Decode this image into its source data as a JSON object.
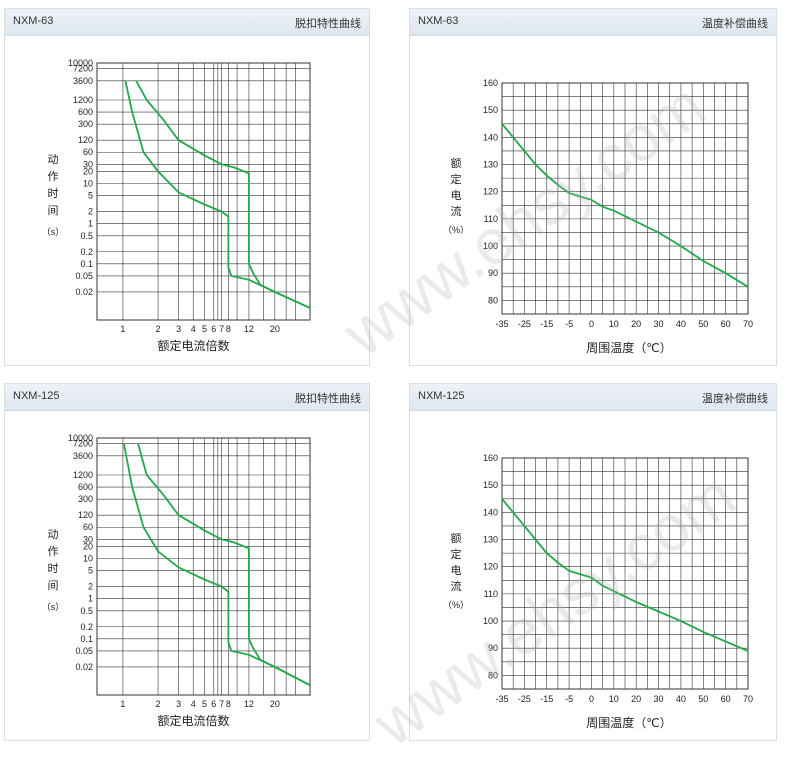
{
  "panels": [
    {
      "model": "NXM-63",
      "header_right": "脱扣特性曲线",
      "chart_data": {
        "type": "line",
        "y_tick_labels": [
          "10000",
          "7200",
          "3600",
          "1200",
          "600",
          "300",
          "120",
          "60",
          "30",
          "20",
          "10",
          "5",
          "2",
          "1",
          "0.5",
          "0.2",
          "0.1",
          "0.05",
          "0.02"
        ],
        "x_tick_labels": [
          "1",
          "2",
          "3",
          "4",
          "5",
          "6",
          "7",
          "8",
          "12",
          "20"
        ],
        "ylabel": [
          "动",
          "作",
          "时",
          "间",
          "（s）"
        ],
        "xlabel": "额定电流倍数",
        "series": [
          {
            "x": [
              1.05,
              1.2,
              1.5,
              2,
              3,
              5,
              7,
              8,
              8,
              8.5,
              12,
              20,
              40
            ],
            "y": [
              3600,
              600,
              60,
              20,
              6,
              3,
              2,
              1.5,
              0.08,
              0.05,
              0.04,
              0.02,
              0.008
            ]
          },
          {
            "x": [
              1.3,
              1.6,
              2.2,
              3,
              5,
              7,
              9,
              12,
              12,
              13,
              15,
              20,
              40
            ],
            "y": [
              3600,
              1200,
              400,
              120,
              50,
              30,
              25,
              18,
              0.1,
              0.06,
              0.03,
              0.02,
              0.008
            ]
          }
        ]
      }
    },
    {
      "model": "NXM-63",
      "header_right": "温度补偿曲线",
      "chart_data": {
        "type": "line",
        "x_ticks": [
          -35,
          -25,
          -15,
          -5,
          0,
          10,
          20,
          30,
          40,
          50,
          60,
          70
        ],
        "y_ticks": [
          80,
          90,
          100,
          110,
          120,
          130,
          140,
          150,
          160
        ],
        "xlabel": "周围温度（℃）",
        "ylabel": [
          "额",
          "定",
          "电",
          "流",
          "（%）"
        ],
        "ylim": [
          75,
          160
        ],
        "series": [
          {
            "x": [
              -35,
              -30,
              -25,
              -20,
              -15,
              -10,
              -5,
              0,
              5,
              10,
              20,
              30,
              40,
              50,
              60,
              70
            ],
            "y": [
              145,
              140,
              135,
              130,
              126,
              122.5,
              119.5,
              117,
              114.5,
              113,
              109,
              105,
              100,
              94.5,
              90,
              85
            ]
          }
        ]
      }
    },
    {
      "model": "NXM-125",
      "header_right": "脱扣特性曲线",
      "chart_data": {
        "type": "line",
        "y_tick_labels": [
          "10000",
          "7200",
          "3600",
          "1200",
          "600",
          "300",
          "120",
          "60",
          "30",
          "20",
          "10",
          "5",
          "2",
          "1",
          "0.5",
          "0.2",
          "0.1",
          "0.05",
          "0.02"
        ],
        "x_tick_labels": [
          "1",
          "2",
          "3",
          "4",
          "5",
          "6",
          "7",
          "8",
          "12",
          "20"
        ],
        "ylabel": [
          "动",
          "作",
          "时",
          "间",
          "（s）"
        ],
        "xlabel": "额定电流倍数",
        "series": [
          {
            "x": [
              1.02,
              1.2,
              1.5,
              2,
              3,
              5,
              7,
              8,
              8,
              8.5,
              12,
              20,
              40
            ],
            "y": [
              7200,
              600,
              60,
              15,
              6,
              3,
              2,
              1.5,
              0.08,
              0.05,
              0.04,
              0.02,
              0.007
            ]
          },
          {
            "x": [
              1.35,
              1.6,
              2.2,
              3,
              5,
              7,
              9,
              12,
              12,
              13,
              15,
              20,
              40
            ],
            "y": [
              7200,
              1200,
              400,
              120,
              50,
              30,
              25,
              18,
              0.1,
              0.06,
              0.03,
              0.02,
              0.007
            ]
          }
        ]
      }
    },
    {
      "model": "NXM-125",
      "header_right": "温度补偿曲线",
      "chart_data": {
        "type": "line",
        "x_ticks": [
          -35,
          -25,
          -15,
          -5,
          0,
          10,
          20,
          30,
          40,
          50,
          60,
          70
        ],
        "y_ticks": [
          80,
          90,
          100,
          110,
          120,
          130,
          140,
          150,
          160
        ],
        "xlabel": "周围温度（℃）",
        "ylabel": [
          "额",
          "定",
          "电",
          "流",
          "（%）"
        ],
        "ylim": [
          75,
          160
        ],
        "series": [
          {
            "x": [
              -35,
              -30,
              -25,
              -20,
              -15,
              -10,
              -5,
              0,
              5,
              10,
              20,
              30,
              40,
              50,
              60,
              70
            ],
            "y": [
              145,
              140,
              135,
              130,
              125,
              121.5,
              118.5,
              116,
              113,
              111,
              107,
              103.5,
              100,
              96,
              92.5,
              89
            ]
          }
        ]
      }
    }
  ],
  "watermark": "www.ehsy.com",
  "colors": {
    "curve": "#21a84a",
    "grid": "#333333",
    "header_bg": "#e4eaf1"
  }
}
